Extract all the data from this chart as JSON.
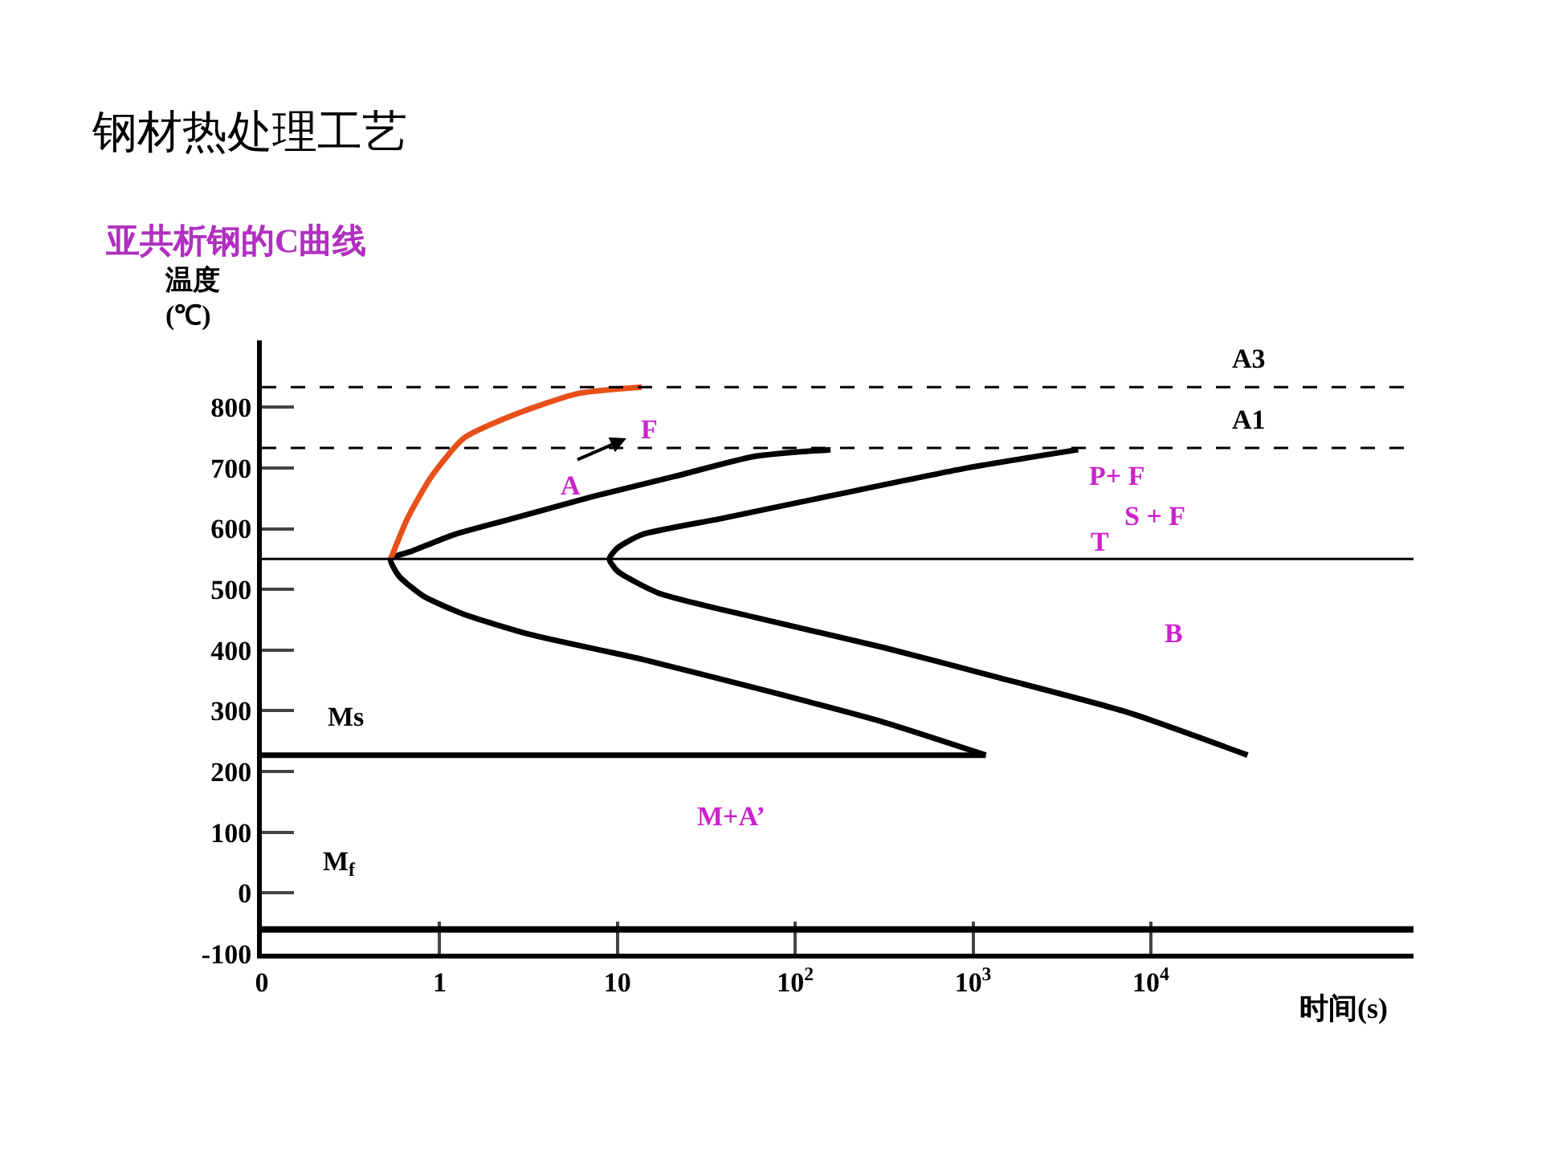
{
  "chart_data": {
    "type": "line",
    "title": "钢材热处理工艺",
    "subtitle": "亚共析钢的C曲线",
    "xlabel": "时间(s)",
    "ylabel": "温度\n(℃)",
    "log": "x",
    "grid": false,
    "marker": "none",
    "line_style": "solid",
    "xlim": [
      0.1,
      300000
    ],
    "xticks": [
      {
        "value": 0.1,
        "label": "0"
      },
      1,
      10,
      {
        "value": 100,
        "label": "10$^{2}$"
      },
      {
        "value": 1000,
        "label": "10$^{3}$"
      },
      {
        "value": 10000,
        "label": "10$^{4}$"
      }
    ],
    "ylim": [
      -100,
      910
    ],
    "yticks": [
      -100,
      0,
      100,
      200,
      300,
      400,
      500,
      600,
      700,
      800
    ],
    "series": [
      {
        "color": "#000000",
        "x": [
          158,
          59,
          21,
          7.3,
          2.6,
          1.2,
          0.7,
          0.53,
          0.59,
          0.81,
          1.37,
          3.2,
          13.7,
          73,
          316,
          1180
        ],
        "values": [
          730,
          719,
          686,
          653,
          617,
          590,
          563,
          550,
          522,
          489,
          459,
          426,
          385,
          331,
          281,
          227
        ]
      },
      {
        "color": "#000000",
        "x": [
          3900,
          890,
          170,
          39,
          13.7,
          10,
          9,
          10,
          17,
          59,
          316,
          1380,
          7300,
          35000
        ],
        "values": [
          730,
          699,
          656,
          617,
          590,
          568,
          550,
          530,
          494,
          454,
          404,
          355,
          298,
          227
        ]
      },
      {
        "color": "#e8501a",
        "x": [
          0.53,
          0.66,
          0.9,
          1.37,
          2.6,
          5.9,
          13.7
        ],
        "values": [
          550,
          617,
          686,
          749,
          787,
          822,
          833
        ]
      },
      {
        "name": "Ms",
        "color": "#000000",
        "x": [
          0.1,
          1180
        ],
        "values": [
          227,
          227
        ]
      }
    ],
    "ref_lines": [
      {
        "axis": "y",
        "value": 833,
        "label": "A3",
        "line_style": "dashed",
        "color": "#000000"
      },
      {
        "axis": "y",
        "value": 733,
        "label": "A1",
        "line_style": "dashed",
        "color": "#000000"
      },
      {
        "axis": "y",
        "value": 550,
        "line_style": "solid",
        "color": "#000000"
      },
      {
        "axis": "y",
        "value": -60,
        "label": "M$_{f}$",
        "line_style": "solid",
        "color": "#000000"
      }
    ],
    "annotations": [
      "A",
      "F",
      "P+ F",
      "S + F",
      "T",
      "B",
      "M+A’"
    ]
  }
}
